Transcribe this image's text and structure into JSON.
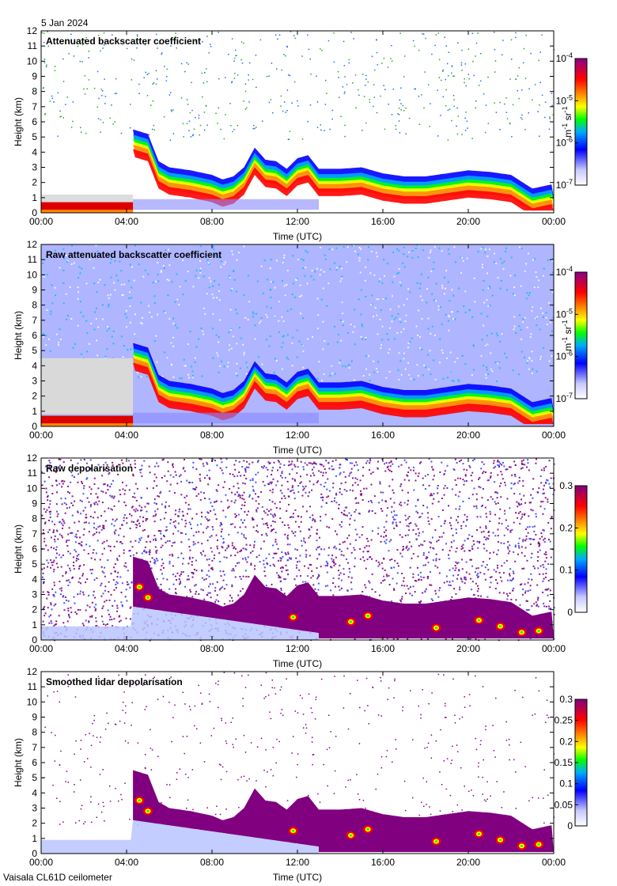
{
  "date_label": "5 Jan 2024",
  "footer_label": "Vaisala CL61D ceilometer",
  "chart_data": [
    {
      "type": "heatmap",
      "title": "Attenuated backscatter coefficient",
      "xlabel": "Time (UTC)",
      "ylabel": "Height (km)",
      "x_ticks": [
        "00:00",
        "04:00",
        "08:00",
        "12:00",
        "16:00",
        "20:00",
        "00:00"
      ],
      "y_ticks": [
        "0",
        "1",
        "2",
        "3",
        "4",
        "5",
        "6",
        "7",
        "8",
        "9",
        "10",
        "11",
        "12"
      ],
      "ylim": [
        0,
        12
      ],
      "colorbar": {
        "scale": "log",
        "labels": [
          {
            "base": "10",
            "exp": "-4"
          },
          {
            "base": "10",
            "exp": "-5"
          },
          {
            "base": "10",
            "exp": "-6"
          },
          {
            "base": "10",
            "exp": "-7"
          }
        ],
        "units": {
          "base1": "m",
          "exp1": "-1",
          "sep": " ",
          "base2": "sr",
          "exp2": "-1"
        }
      },
      "cloud_top_km": [
        [
          0,
          1.1
        ],
        [
          1,
          1.1
        ],
        [
          2,
          1.0
        ],
        [
          3,
          1.0
        ],
        [
          4,
          1.0
        ],
        [
          4.3,
          5.5
        ],
        [
          5,
          5.2
        ],
        [
          5.5,
          3.4
        ],
        [
          6,
          3.0
        ],
        [
          7,
          2.8
        ],
        [
          8,
          2.5
        ],
        [
          8.5,
          2.2
        ],
        [
          9,
          2.4
        ],
        [
          9.5,
          3.0
        ],
        [
          10,
          4.3
        ],
        [
          10.5,
          3.5
        ],
        [
          11,
          3.4
        ],
        [
          11.5,
          2.9
        ],
        [
          12,
          3.6
        ],
        [
          12.5,
          3.8
        ],
        [
          13,
          2.9
        ],
        [
          14,
          2.9
        ],
        [
          15,
          3.0
        ],
        [
          16,
          2.6
        ],
        [
          17,
          2.4
        ],
        [
          18,
          2.4
        ],
        [
          19,
          2.6
        ],
        [
          20,
          2.8
        ],
        [
          21,
          2.7
        ],
        [
          22,
          2.5
        ],
        [
          23,
          1.6
        ],
        [
          24,
          1.9
        ]
      ]
    },
    {
      "type": "heatmap",
      "title": "Raw attenuated backscatter coefficient",
      "xlabel": "Time (UTC)",
      "ylabel": "Height (km)",
      "x_ticks": [
        "00:00",
        "04:00",
        "08:00",
        "12:00",
        "16:00",
        "20:00",
        "00:00"
      ],
      "y_ticks": [
        "0",
        "1",
        "2",
        "3",
        "4",
        "5",
        "6",
        "7",
        "8",
        "9",
        "10",
        "11",
        "12"
      ],
      "ylim": [
        0,
        12
      ],
      "colorbar": {
        "scale": "log",
        "labels": [
          {
            "base": "10",
            "exp": "-4"
          },
          {
            "base": "10",
            "exp": "-5"
          },
          {
            "base": "10",
            "exp": "-6"
          },
          {
            "base": "10",
            "exp": "-7"
          }
        ],
        "units": {
          "base1": "m",
          "exp1": "-1",
          "sep": " ",
          "base2": "sr",
          "exp2": "-1"
        }
      }
    },
    {
      "type": "heatmap",
      "title": "Raw depolarisation",
      "xlabel": "Time (UTC)",
      "ylabel": "Height (km)",
      "x_ticks": [
        "00:00",
        "04:00",
        "08:00",
        "12:00",
        "16:00",
        "20:00",
        "00:00"
      ],
      "y_ticks": [
        "0",
        "1",
        "2",
        "3",
        "4",
        "5",
        "6",
        "7",
        "8",
        "9",
        "10",
        "11",
        "12"
      ],
      "ylim": [
        0,
        12
      ],
      "colorbar": {
        "scale": "linear",
        "range": [
          0,
          0.3
        ],
        "labels": [
          "0.3",
          "0.2",
          "0.1",
          "0"
        ]
      }
    },
    {
      "type": "heatmap",
      "title": "Smoothed lidar depolarisation",
      "xlabel": "Time (UTC)",
      "ylabel": "Height (km)",
      "x_ticks": [
        "00:00",
        "04:00",
        "08:00",
        "12:00",
        "16:00",
        "20:00",
        "00:00"
      ],
      "y_ticks": [
        "0",
        "1",
        "2",
        "3",
        "4",
        "5",
        "6",
        "7",
        "8",
        "9",
        "10",
        "11",
        "12"
      ],
      "ylim": [
        0,
        12
      ],
      "colorbar": {
        "scale": "linear",
        "range": [
          0,
          0.3
        ],
        "labels": [
          "0.3",
          "0.25",
          "0.2",
          "0.15",
          "0.1",
          "0.05",
          "0"
        ]
      }
    }
  ]
}
